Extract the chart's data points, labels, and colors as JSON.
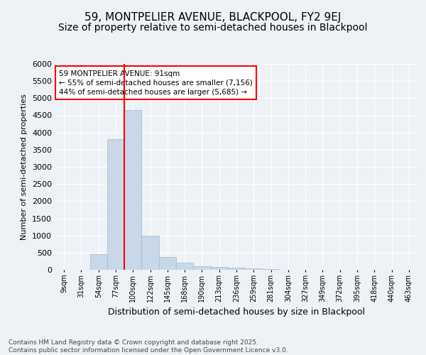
{
  "title": "59, MONTPELIER AVENUE, BLACKPOOL, FY2 9EJ",
  "subtitle": "Size of property relative to semi-detached houses in Blackpool",
  "xlabel": "Distribution of semi-detached houses by size in Blackpool",
  "ylabel": "Number of semi-detached properties",
  "categories": [
    "9sqm",
    "31sqm",
    "54sqm",
    "77sqm",
    "100sqm",
    "122sqm",
    "145sqm",
    "168sqm",
    "190sqm",
    "213sqm",
    "236sqm",
    "259sqm",
    "281sqm",
    "304sqm",
    "327sqm",
    "349sqm",
    "372sqm",
    "395sqm",
    "418sqm",
    "440sqm",
    "463sqm"
  ],
  "values": [
    0,
    0,
    450,
    3800,
    4650,
    1000,
    380,
    215,
    100,
    80,
    65,
    50,
    30,
    0,
    0,
    0,
    0,
    0,
    0,
    0,
    0
  ],
  "bar_color": "#c8d8e8",
  "bar_edge_color": "#a0b8cc",
  "red_line_index": 3.5,
  "annotation_title": "59 MONTPELIER AVENUE: 91sqm",
  "annotation_line1": "← 55% of semi-detached houses are smaller (7,156)",
  "annotation_line2": "44% of semi-detached houses are larger (5,685) →",
  "ylim": [
    0,
    6000
  ],
  "yticks": [
    0,
    500,
    1000,
    1500,
    2000,
    2500,
    3000,
    3500,
    4000,
    4500,
    5000,
    5500,
    6000
  ],
  "footnote": "Contains HM Land Registry data © Crown copyright and database right 2025.\nContains public sector information licensed under the Open Government Licence v3.0.",
  "background_color": "#eef2f7",
  "grid_color": "#ffffff",
  "title_fontsize": 11,
  "subtitle_fontsize": 10
}
